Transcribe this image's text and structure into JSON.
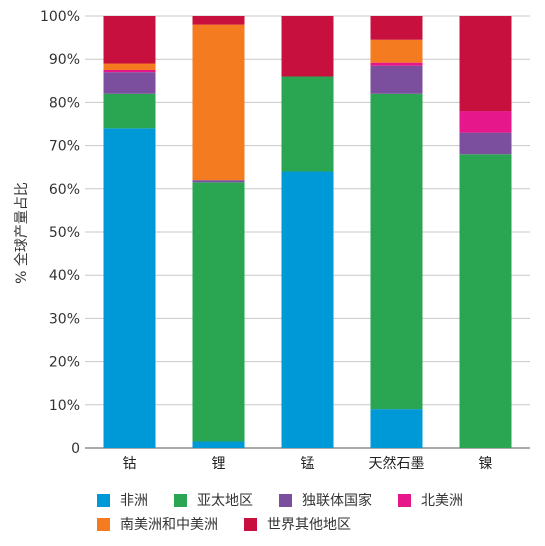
{
  "chart_data": {
    "type": "stacked-bar",
    "ylabel": "% 全球产量占比",
    "yticks": [
      "0",
      "10%",
      "20%",
      "30%",
      "40%",
      "50%",
      "60%",
      "70%",
      "80%",
      "90%",
      "100%"
    ],
    "ylim": [
      0,
      100
    ],
    "grid": true,
    "legend_position": "bottom",
    "categories": [
      "钴",
      "锂",
      "锰",
      "天然石墨",
      "镍"
    ],
    "series": [
      {
        "name": "非洲",
        "color": "#0099d8",
        "values": [
          74,
          1.5,
          64,
          9,
          0
        ]
      },
      {
        "name": "亚太地区",
        "color": "#2aa552",
        "values": [
          8,
          60,
          22,
          73,
          68
        ]
      },
      {
        "name": "独联体国家",
        "color": "#7b4f9e",
        "values": [
          5,
          0.5,
          0,
          6.5,
          5
        ]
      },
      {
        "name": "北美洲",
        "color": "#e6178a",
        "values": [
          0.5,
          0,
          0,
          0.7,
          5
        ]
      },
      {
        "name": "南美洲和中美洲",
        "color": "#f47b20",
        "values": [
          1.5,
          36,
          0,
          5.3,
          0
        ]
      },
      {
        "name": "世界其他地区",
        "color": "#c8103e",
        "values": [
          11,
          2,
          14,
          5.5,
          22
        ]
      }
    ],
    "legend_rows": [
      [
        0,
        1,
        2,
        3
      ],
      [
        4,
        5
      ]
    ]
  }
}
